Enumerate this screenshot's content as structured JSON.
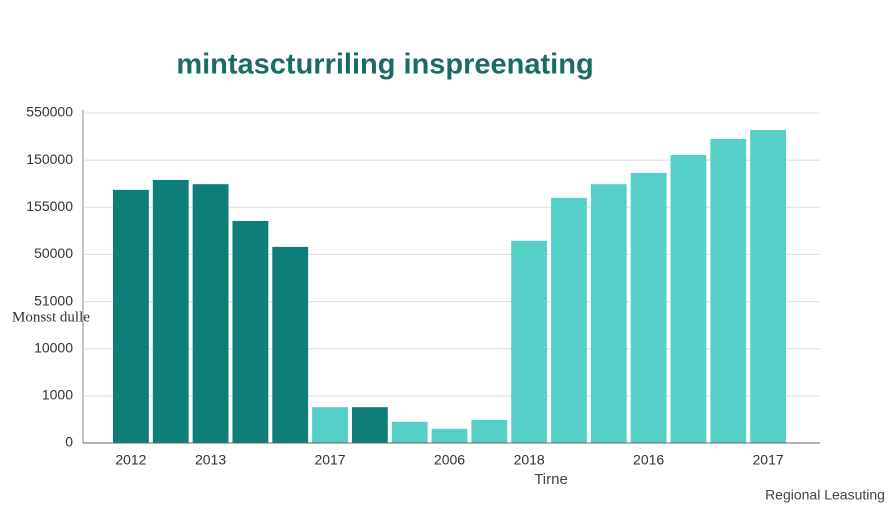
{
  "chart_data": {
    "type": "bar",
    "title": "mintascturriling inspreenating",
    "y_label": "Monsst dulle",
    "x_label": "Tirne",
    "footer": "Regional Leasuting",
    "categories": [
      "2012",
      null,
      "2013",
      null,
      null,
      "2017",
      null,
      null,
      "2006",
      null,
      "2018",
      null,
      null,
      "2016",
      null,
      null,
      "2017"
    ],
    "values": [
      5.37,
      5.58,
      5.49,
      4.71,
      4.16,
      0.76,
      0.76,
      0.45,
      0.3,
      0.49,
      4.29,
      5.2,
      5.49,
      5.73,
      6.11,
      6.45,
      6.64
    ],
    "colors": [
      "#0e7f78",
      "#0e7f78",
      "#0e7f78",
      "#0e7f78",
      "#0e7f78",
      "#55d0c9",
      "#0e7f78",
      "#55d0c9",
      "#55d0c9",
      "#55d0c9",
      "#55d0c9",
      "#55d0c9",
      "#55d0c9",
      "#55d0c9",
      "#55d0c9",
      "#55d0c9",
      "#55d0c9"
    ],
    "ylim": [
      0,
      7
    ],
    "yticks": [
      0,
      {
        "value": 1,
        "label": "1000"
      },
      {
        "value": 2,
        "label": "10000"
      },
      {
        "value": 3,
        "label": "51000"
      },
      {
        "value": 4,
        "label": "50000"
      },
      {
        "value": 5,
        "label": "155000"
      },
      {
        "value": 6,
        "label": "150000"
      },
      {
        "value": 7,
        "label": "550000"
      }
    ],
    "grid": true
  }
}
